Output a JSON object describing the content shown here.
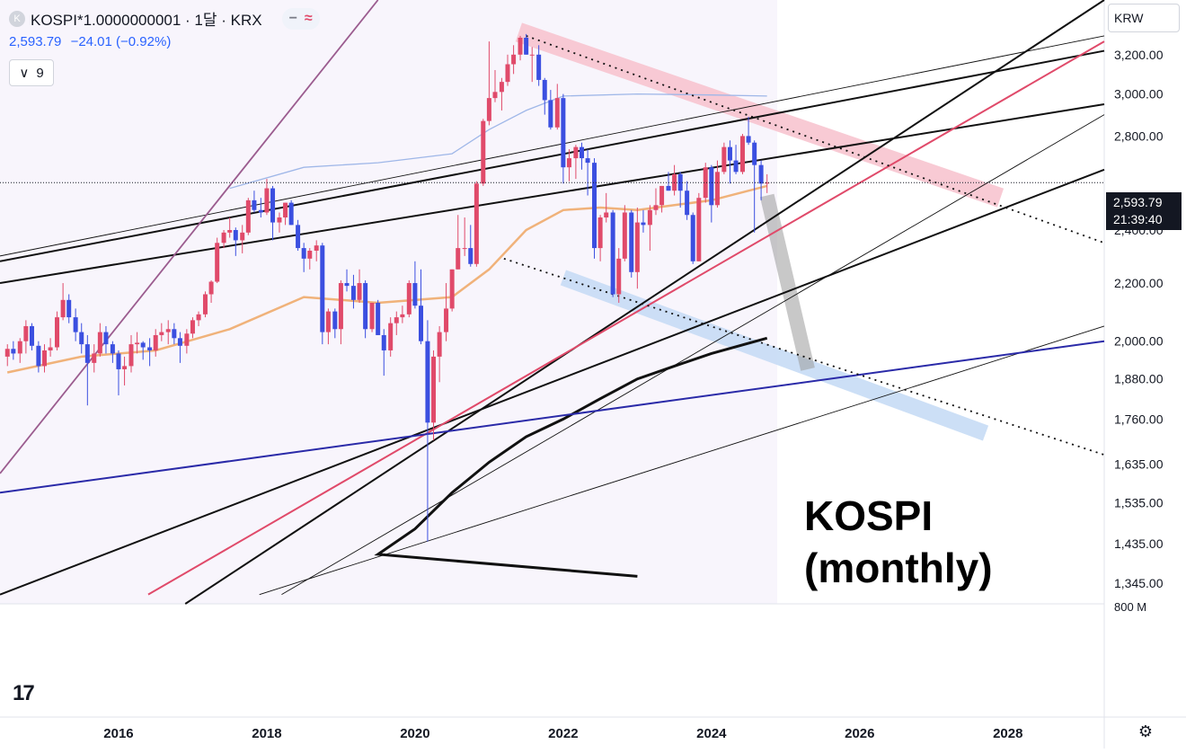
{
  "header": {
    "symbol_icon": "K",
    "title": "KOSPI*1.0000000001 · 1달 · KRX",
    "btn_minus": "−",
    "btn_wave": "≈",
    "price": "2,593.79",
    "change": "−24.01 (−0.92%)",
    "indicator_icon": "chevron-down-icon",
    "indicator_count": "9"
  },
  "currency": "KRW",
  "price_tag": {
    "price": "2,593.79",
    "countdown": "21:39:40"
  },
  "volume_axis_label": "800 M",
  "annotation": {
    "line1": "KOSPI",
    "line2": "(monthly)"
  },
  "logo_text": "17",
  "settings_icon": "gear-icon",
  "colors": {
    "up": "#e04a6a",
    "down": "#3b4fe0",
    "red_trend": "#e04a6a",
    "blue_trend": "#2a2aa8",
    "purple_trend": "#9b5c8f",
    "pink_channel": "#f7c4cf",
    "blue_channel": "#c6dcf5",
    "ma_orange": "#f0b27a",
    "ma_blue": "#9fb7e8",
    "ma_black": "#111111"
  },
  "chart_data": {
    "type": "candlestick",
    "interval": "monthly",
    "y_scale": "log",
    "ylim": [
      1300,
      3500
    ],
    "xlim": [
      2014.4,
      2029.3
    ],
    "y_ticks": [
      "3,200.00",
      "3,000.00",
      "2,800.00",
      "2,400.00",
      "2,200.00",
      "2,000.00",
      "1,880.00",
      "1,760.00",
      "1,635.00",
      "1,535.00",
      "1,435.00",
      "1,345.00"
    ],
    "x_ticks": [
      "2016",
      "2018",
      "2020",
      "2022",
      "2024",
      "2026",
      "2028"
    ],
    "current_price": 2593.79,
    "candles": [
      [
        2014.5,
        1950,
        1990,
        1920,
        1975
      ],
      [
        2014.58,
        1975,
        2000,
        1940,
        1960
      ],
      [
        2014.67,
        1960,
        2010,
        1930,
        2000
      ],
      [
        2014.75,
        2000,
        2070,
        1960,
        2050
      ],
      [
        2014.83,
        2050,
        2060,
        1970,
        1985
      ],
      [
        2014.92,
        1985,
        2000,
        1900,
        1920
      ],
      [
        2015.0,
        1920,
        1990,
        1900,
        1970
      ],
      [
        2015.08,
        1970,
        2010,
        1950,
        1980
      ],
      [
        2015.17,
        1980,
        2100,
        1970,
        2080
      ],
      [
        2015.25,
        2080,
        2200,
        2070,
        2140
      ],
      [
        2015.33,
        2140,
        2160,
        2060,
        2080
      ],
      [
        2015.42,
        2080,
        2110,
        2000,
        2030
      ],
      [
        2015.5,
        2030,
        2060,
        1960,
        1990
      ],
      [
        2015.58,
        1990,
        2020,
        1800,
        1930
      ],
      [
        2015.67,
        1930,
        1990,
        1900,
        1960
      ],
      [
        2015.75,
        1960,
        2060,
        1950,
        2030
      ],
      [
        2015.83,
        2030,
        2050,
        1960,
        1990
      ],
      [
        2015.92,
        1990,
        2000,
        1930,
        1960
      ],
      [
        2016.0,
        1960,
        1970,
        1830,
        1910
      ],
      [
        2016.08,
        1910,
        1950,
        1860,
        1920
      ],
      [
        2016.17,
        1920,
        2020,
        1900,
        1990
      ],
      [
        2016.25,
        1990,
        2030,
        1960,
        1995
      ],
      [
        2016.33,
        1995,
        2000,
        1940,
        1980
      ],
      [
        2016.42,
        1980,
        2010,
        1920,
        1970
      ],
      [
        2016.5,
        1970,
        2040,
        1950,
        2020
      ],
      [
        2016.58,
        2020,
        2060,
        2000,
        2030
      ],
      [
        2016.67,
        2030,
        2070,
        1990,
        2040
      ],
      [
        2016.75,
        2040,
        2060,
        1990,
        2010
      ],
      [
        2016.83,
        2010,
        2030,
        1930,
        1985
      ],
      [
        2016.92,
        1985,
        2040,
        1960,
        2025
      ],
      [
        2017.0,
        2025,
        2080,
        2010,
        2070
      ],
      [
        2017.08,
        2070,
        2100,
        2050,
        2090
      ],
      [
        2017.17,
        2090,
        2170,
        2080,
        2160
      ],
      [
        2017.25,
        2160,
        2210,
        2130,
        2205
      ],
      [
        2017.33,
        2205,
        2370,
        2200,
        2350
      ],
      [
        2017.42,
        2350,
        2400,
        2330,
        2390
      ],
      [
        2017.5,
        2390,
        2450,
        2370,
        2400
      ],
      [
        2017.58,
        2400,
        2410,
        2300,
        2360
      ],
      [
        2017.67,
        2360,
        2420,
        2310,
        2390
      ],
      [
        2017.75,
        2390,
        2530,
        2380,
        2520
      ],
      [
        2017.83,
        2520,
        2560,
        2470,
        2480
      ],
      [
        2017.92,
        2480,
        2530,
        2450,
        2470
      ],
      [
        2018.0,
        2470,
        2610,
        2460,
        2570
      ],
      [
        2018.08,
        2570,
        2580,
        2360,
        2430
      ],
      [
        2018.17,
        2430,
        2470,
        2390,
        2450
      ],
      [
        2018.25,
        2450,
        2510,
        2420,
        2510
      ],
      [
        2018.33,
        2510,
        2520,
        2420,
        2420
      ],
      [
        2018.42,
        2420,
        2440,
        2320,
        2330
      ],
      [
        2018.5,
        2330,
        2350,
        2240,
        2290
      ],
      [
        2018.58,
        2290,
        2330,
        2250,
        2320
      ],
      [
        2018.67,
        2320,
        2360,
        2280,
        2340
      ],
      [
        2018.75,
        2340,
        2350,
        1990,
        2030
      ],
      [
        2018.83,
        2030,
        2110,
        1990,
        2100
      ],
      [
        2018.92,
        2100,
        2110,
        2010,
        2040
      ],
      [
        2019.0,
        2040,
        2210,
        1990,
        2200
      ],
      [
        2019.08,
        2200,
        2250,
        2170,
        2190
      ],
      [
        2019.17,
        2190,
        2230,
        2110,
        2140
      ],
      [
        2019.25,
        2140,
        2250,
        2130,
        2200
      ],
      [
        2019.33,
        2200,
        2210,
        2010,
        2040
      ],
      [
        2019.42,
        2040,
        2130,
        2030,
        2130
      ],
      [
        2019.5,
        2130,
        2140,
        2020,
        2020
      ],
      [
        2019.58,
        2020,
        2040,
        1890,
        1970
      ],
      [
        2019.67,
        1970,
        2080,
        1950,
        2060
      ],
      [
        2019.75,
        2060,
        2100,
        2020,
        2080
      ],
      [
        2019.83,
        2080,
        2120,
        2060,
        2090
      ],
      [
        2019.92,
        2090,
        2210,
        2080,
        2200
      ],
      [
        2020.0,
        2200,
        2280,
        2110,
        2120
      ],
      [
        2020.08,
        2120,
        2250,
        1990,
        2000
      ],
      [
        2020.17,
        2000,
        2070,
        1440,
        1750
      ],
      [
        2020.25,
        1750,
        1970,
        1700,
        1950
      ],
      [
        2020.33,
        1950,
        2050,
        1870,
        2030
      ],
      [
        2020.42,
        2030,
        2200,
        2000,
        2110
      ],
      [
        2020.5,
        2110,
        2250,
        2100,
        2250
      ],
      [
        2020.58,
        2250,
        2460,
        2250,
        2330
      ],
      [
        2020.67,
        2330,
        2450,
        2300,
        2330
      ],
      [
        2020.75,
        2330,
        2420,
        2260,
        2270
      ],
      [
        2020.83,
        2270,
        2600,
        2260,
        2590
      ],
      [
        2020.92,
        2590,
        2880,
        2580,
        2870
      ],
      [
        2021.0,
        2870,
        3270,
        2850,
        2980
      ],
      [
        2021.08,
        2980,
        3120,
        2960,
        3010
      ],
      [
        2021.17,
        3010,
        3080,
        2920,
        3060
      ],
      [
        2021.25,
        3060,
        3200,
        3040,
        3150
      ],
      [
        2021.33,
        3150,
        3250,
        3100,
        3200
      ],
      [
        2021.42,
        3200,
        3300,
        3170,
        3290
      ],
      [
        2021.5,
        3290,
        3310,
        3200,
        3200
      ],
      [
        2021.58,
        3200,
        3240,
        3060,
        3200
      ],
      [
        2021.67,
        3200,
        3250,
        3040,
        3070
      ],
      [
        2021.75,
        3070,
        3080,
        2900,
        2970
      ],
      [
        2021.83,
        2970,
        3020,
        2830,
        2840
      ],
      [
        2021.92,
        2840,
        3050,
        2830,
        2980
      ],
      [
        2022.0,
        2980,
        3000,
        2590,
        2660
      ],
      [
        2022.08,
        2660,
        2740,
        2600,
        2700
      ],
      [
        2022.17,
        2700,
        2760,
        2610,
        2750
      ],
      [
        2022.25,
        2750,
        2770,
        2650,
        2700
      ],
      [
        2022.33,
        2700,
        2740,
        2540,
        2680
      ],
      [
        2022.42,
        2680,
        2700,
        2290,
        2330
      ],
      [
        2022.5,
        2330,
        2460,
        2280,
        2450
      ],
      [
        2022.58,
        2450,
        2550,
        2430,
        2470
      ],
      [
        2022.67,
        2470,
        2480,
        2150,
        2160
      ],
      [
        2022.75,
        2160,
        2330,
        2130,
        2290
      ],
      [
        2022.83,
        2290,
        2500,
        2280,
        2470
      ],
      [
        2022.92,
        2470,
        2480,
        2220,
        2240
      ],
      [
        2023.0,
        2240,
        2490,
        2180,
        2430
      ],
      [
        2023.08,
        2430,
        2480,
        2390,
        2420
      ],
      [
        2023.17,
        2420,
        2500,
        2320,
        2480
      ],
      [
        2023.25,
        2480,
        2570,
        2460,
        2500
      ],
      [
        2023.33,
        2500,
        2580,
        2470,
        2580
      ],
      [
        2023.42,
        2580,
        2640,
        2560,
        2560
      ],
      [
        2023.5,
        2560,
        2670,
        2540,
        2630
      ],
      [
        2023.58,
        2630,
        2640,
        2490,
        2560
      ],
      [
        2023.67,
        2560,
        2600,
        2440,
        2460
      ],
      [
        2023.75,
        2460,
        2470,
        2270,
        2280
      ],
      [
        2023.83,
        2280,
        2550,
        2280,
        2530
      ],
      [
        2023.92,
        2530,
        2680,
        2510,
        2660
      ],
      [
        2024.0,
        2660,
        2670,
        2430,
        2500
      ],
      [
        2024.08,
        2500,
        2690,
        2490,
        2640
      ],
      [
        2024.17,
        2640,
        2770,
        2630,
        2750
      ],
      [
        2024.25,
        2750,
        2780,
        2590,
        2690
      ],
      [
        2024.33,
        2690,
        2760,
        2630,
        2640
      ],
      [
        2024.42,
        2640,
        2810,
        2630,
        2800
      ],
      [
        2024.5,
        2800,
        2890,
        2760,
        2770
      ],
      [
        2024.58,
        2770,
        2780,
        2390,
        2670
      ],
      [
        2024.67,
        2670,
        2690,
        2520,
        2590
      ],
      [
        2024.75,
        2590,
        2630,
        2550,
        2593.79
      ]
    ],
    "moving_averages": [
      {
        "color": "orange",
        "points": [
          [
            2014.5,
            1900
          ],
          [
            2015.5,
            1950
          ],
          [
            2016.5,
            1970
          ],
          [
            2017.5,
            2040
          ],
          [
            2018.5,
            2150
          ],
          [
            2019.5,
            2130
          ],
          [
            2020.5,
            2150
          ],
          [
            2021.0,
            2250
          ],
          [
            2021.5,
            2400
          ],
          [
            2022.0,
            2480
          ],
          [
            2022.5,
            2490
          ],
          [
            2023.0,
            2480
          ],
          [
            2023.5,
            2500
          ],
          [
            2024.0,
            2520
          ],
          [
            2024.75,
            2580
          ]
        ]
      },
      {
        "color": "blue",
        "points": [
          [
            2017.5,
            2570
          ],
          [
            2018.5,
            2660
          ],
          [
            2019.5,
            2680
          ],
          [
            2020.5,
            2720
          ],
          [
            2021.0,
            2830
          ],
          [
            2021.5,
            2920
          ],
          [
            2022.0,
            2990
          ],
          [
            2023.0,
            3000
          ],
          [
            2024.0,
            2995
          ],
          [
            2024.75,
            2990
          ]
        ]
      },
      {
        "color": "black",
        "points": [
          [
            2023.0,
            1360
          ],
          [
            2019.5,
            1410
          ],
          [
            2020.0,
            1470
          ],
          [
            2020.5,
            1560
          ],
          [
            2021.0,
            1640
          ],
          [
            2021.5,
            1710
          ],
          [
            2022.0,
            1760
          ],
          [
            2022.5,
            1820
          ],
          [
            2023.0,
            1880
          ],
          [
            2023.5,
            1920
          ],
          [
            2024.0,
            1960
          ],
          [
            2024.75,
            2010
          ]
        ]
      }
    ],
    "trendlines": [
      {
        "style": "thin-black",
        "points": [
          [
            2014.4,
            2300
          ],
          [
            2029.3,
            3300
          ]
        ]
      },
      {
        "style": "black",
        "points": [
          [
            2014.4,
            2280
          ],
          [
            2029.3,
            3220
          ]
        ]
      },
      {
        "style": "black",
        "points": [
          [
            2014.4,
            2200
          ],
          [
            2029.3,
            2950
          ]
        ]
      },
      {
        "style": "black",
        "points": [
          [
            2016.9,
            1300
          ],
          [
            2029.3,
            3500
          ]
        ]
      },
      {
        "style": "black",
        "points": [
          [
            2014.4,
            1320
          ],
          [
            2029.3,
            2650
          ]
        ]
      },
      {
        "style": "thin-black",
        "points": [
          [
            2018.2,
            1320
          ],
          [
            2029.3,
            2900
          ]
        ]
      },
      {
        "style": "thin-black",
        "points": [
          [
            2017.9,
            1320
          ],
          [
            2029.3,
            2050
          ]
        ]
      },
      {
        "style": "red",
        "points": [
          [
            2016.4,
            1320
          ],
          [
            2029.3,
            3270
          ]
        ]
      },
      {
        "style": "purple",
        "points": [
          [
            2014.4,
            1610
          ],
          [
            2019.5,
            3500
          ]
        ]
      },
      {
        "style": "navy",
        "points": [
          [
            2014.4,
            1560
          ],
          [
            2029.3,
            2000
          ]
        ]
      },
      {
        "style": "dotted",
        "points": [
          [
            2021.5,
            3300
          ],
          [
            2029.3,
            2350
          ]
        ]
      },
      {
        "style": "dotted",
        "points": [
          [
            2021.2,
            2290
          ],
          [
            2029.3,
            1660
          ]
        ]
      }
    ],
    "channels": [
      {
        "color": "pink",
        "points": [
          [
            2021.4,
            3320
          ],
          [
            2027.9,
            2530
          ]
        ]
      },
      {
        "color": "blue",
        "points": [
          [
            2022.0,
            2220
          ],
          [
            2027.7,
            1720
          ]
        ]
      },
      {
        "color": "gray",
        "points": [
          [
            2024.75,
            2540
          ],
          [
            2025.3,
            1910
          ]
        ]
      }
    ]
  }
}
